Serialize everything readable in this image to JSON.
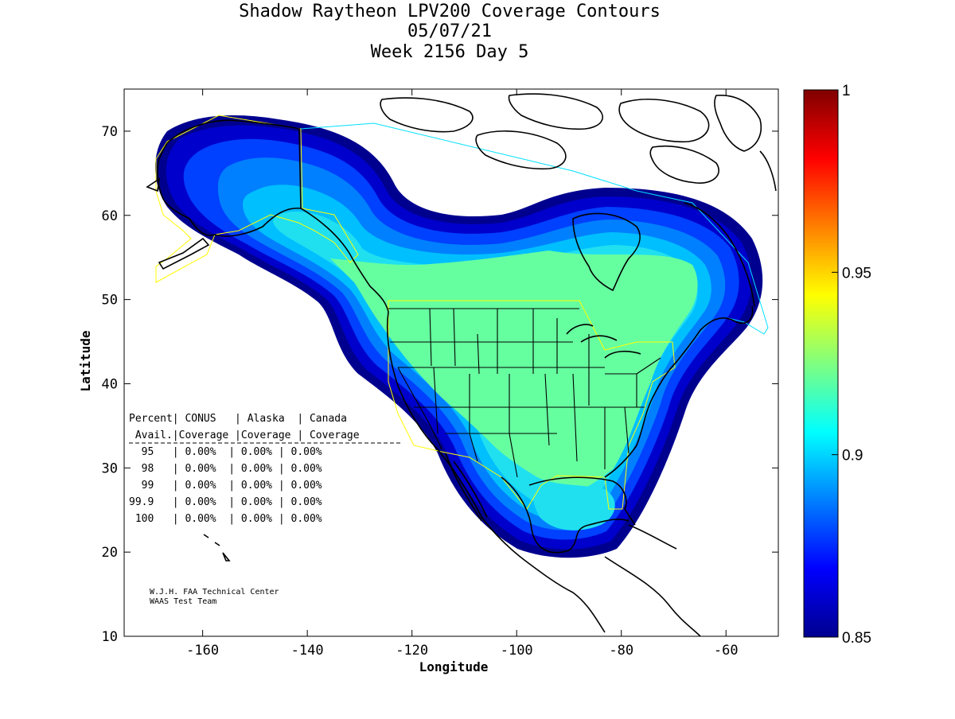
{
  "header": {
    "title": "Shadow Raytheon LPV200 Coverage Contours",
    "date": "05/07/21",
    "week": "Week 2156 Day 5"
  },
  "axes": {
    "xlabel": "Longitude",
    "ylabel": "Latitude",
    "x_ticks": [
      "-160",
      "-140",
      "-120",
      "-100",
      "-80",
      "-60"
    ],
    "y_ticks": [
      "70",
      "60",
      "50",
      "40",
      "30",
      "20",
      "10"
    ],
    "x_range": [
      -175,
      -50
    ],
    "y_range": [
      10,
      75
    ]
  },
  "colorbar": {
    "ticks": [
      "1",
      "0.95",
      "0.9",
      "0.85"
    ],
    "range": [
      0.85,
      1.0
    ]
  },
  "table": {
    "header1": "Percent| CONUS   | Alaska  | Canada",
    "header2": " Avail.|Coverage |Coverage | Coverage",
    "rows": [
      "  95   | 0.00%  | 0.00% | 0.00%",
      "  98   | 0.00%  | 0.00% | 0.00%",
      "  99   | 0.00%  | 0.00% | 0.00%",
      "99.9   | 0.00%  | 0.00% | 0.00%",
      " 100   | 0.00%  | 0.00% | 0.00%"
    ]
  },
  "credit": {
    "line1": "W.J.H. FAA Technical Center",
    "line2": "WAAS Test Team"
  },
  "colors": {
    "band1": "#00008f",
    "band2": "#0000cc",
    "band3": "#0040ff",
    "band4": "#0080ff",
    "band5": "#00bfff",
    "band6": "#20e0f0",
    "band7": "#66ffa0",
    "coastline": "#000000",
    "service_conus": "#ffff00",
    "service_canada": "#00e0ff"
  }
}
